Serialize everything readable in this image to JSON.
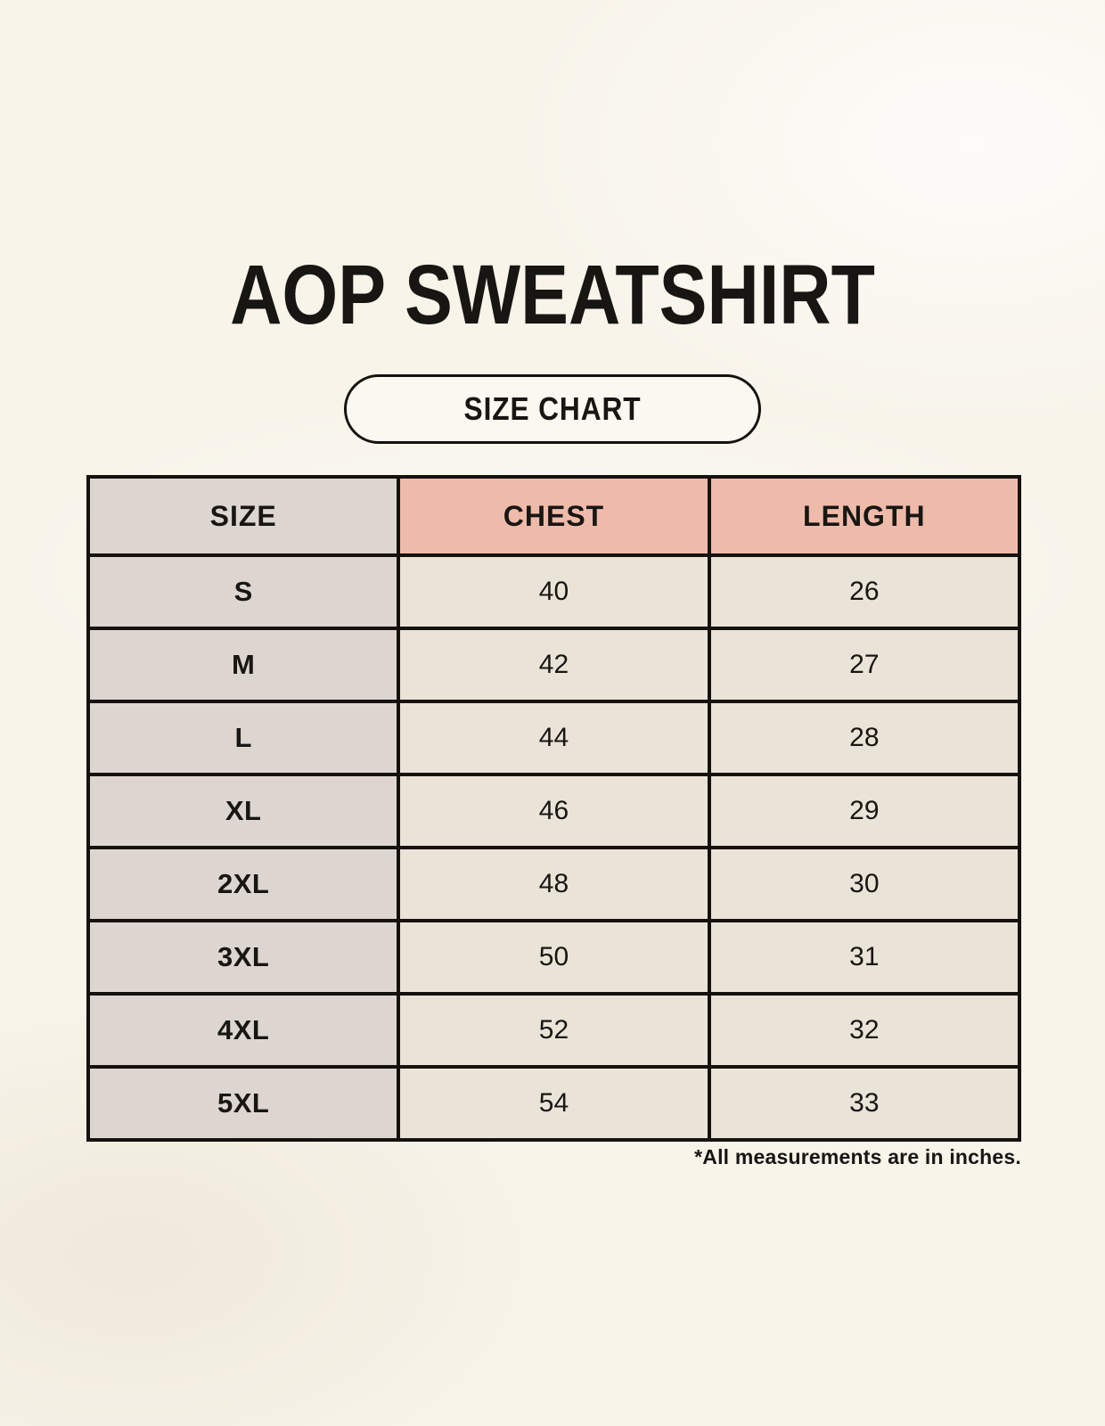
{
  "page": {
    "title": "AOP SWEATSHIRT",
    "badge_label": "SIZE CHART",
    "footnote": "*All measurements are in inches."
  },
  "chart_data": {
    "type": "table",
    "title": "AOP SWEATSHIRT",
    "subtitle": "SIZE CHART",
    "columns": [
      "SIZE",
      "CHEST",
      "LENGTH"
    ],
    "rows": [
      [
        "S",
        40,
        26
      ],
      [
        "M",
        42,
        27
      ],
      [
        "L",
        44,
        28
      ],
      [
        "XL",
        46,
        29
      ],
      [
        "2XL",
        48,
        30
      ],
      [
        "3XL",
        50,
        31
      ],
      [
        "4XL",
        52,
        32
      ],
      [
        "5XL",
        54,
        33
      ]
    ],
    "units": "inches",
    "note": "*All measurements are in inches.",
    "layout": {
      "header_fill_size_column": "gray",
      "header_fill_measure_columns": "salmon",
      "grid": "on"
    }
  },
  "colors": {
    "background": "#f8f4ea",
    "pill_fill": "#fbf8f1",
    "size_column": "#ddd6d0",
    "header_accent": "#eebbaa",
    "data_cell": "#eae3d7",
    "border": "#15120e",
    "text": "#181613"
  }
}
